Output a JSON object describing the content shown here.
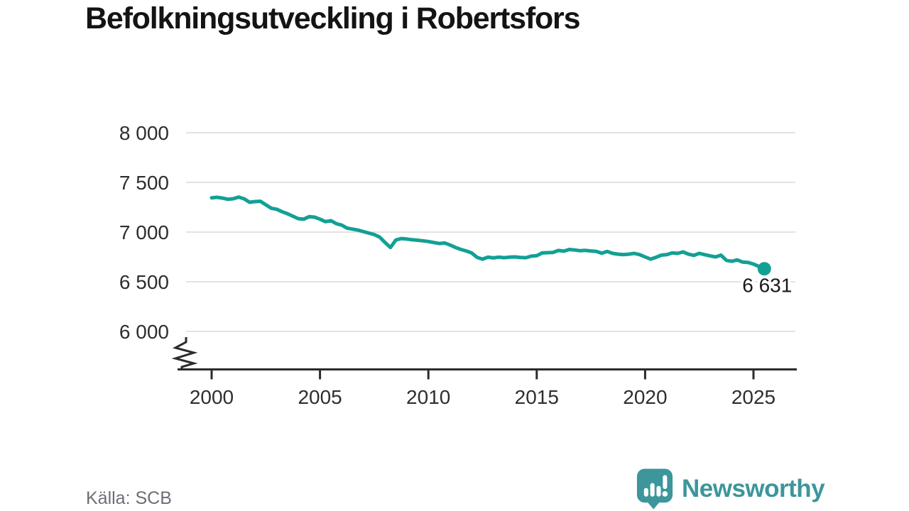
{
  "title": "Befolkningsutveckling i Robertsfors",
  "source": "Källa: SCB",
  "brand": {
    "name": "Newsworthy",
    "color": "#3c969b"
  },
  "chart_data": {
    "type": "line",
    "title": "Befolkningsutveckling i Robertsfors",
    "xlabel": "",
    "ylabel": "",
    "x_start": 2000,
    "x_step": 0.25,
    "values": [
      7345,
      7350,
      7342,
      7330,
      7336,
      7352,
      7335,
      7300,
      7307,
      7310,
      7275,
      7240,
      7230,
      7205,
      7185,
      7160,
      7135,
      7130,
      7155,
      7150,
      7130,
      7105,
      7115,
      7085,
      7070,
      7040,
      7030,
      7020,
      7005,
      6990,
      6975,
      6950,
      6895,
      6845,
      6920,
      6935,
      6930,
      6923,
      6918,
      6912,
      6905,
      6895,
      6885,
      6890,
      6870,
      6845,
      6825,
      6810,
      6790,
      6745,
      6728,
      6748,
      6740,
      6748,
      6742,
      6748,
      6750,
      6745,
      6742,
      6758,
      6762,
      6790,
      6793,
      6795,
      6815,
      6808,
      6825,
      6820,
      6812,
      6816,
      6810,
      6806,
      6788,
      6806,
      6786,
      6778,
      6773,
      6778,
      6786,
      6773,
      6750,
      6728,
      6746,
      6768,
      6773,
      6790,
      6786,
      6800,
      6778,
      6766,
      6786,
      6773,
      6760,
      6750,
      6768,
      6716,
      6706,
      6720,
      6698,
      6694,
      6678,
      6654,
      6631
    ],
    "end_value": 6631,
    "end_label": "6 631",
    "xticks": [
      2000,
      2005,
      2010,
      2015,
      2020,
      2025
    ],
    "ytick_values": [
      8000,
      7500,
      7000,
      6500,
      6000
    ],
    "ytick_labels": [
      "8 000",
      "7 500",
      "7 000",
      "6 500",
      "6 000"
    ],
    "ylim": [
      6000,
      8000
    ],
    "y_axis_break": true,
    "grid": "horizontal",
    "legend": "none",
    "line_color": "#13a094",
    "grid_color": "#e2e2e2",
    "axis_color": "#2b2b2b",
    "tick_text_color": "#2e2e2e",
    "end_label_color": "#1a1a1a"
  }
}
